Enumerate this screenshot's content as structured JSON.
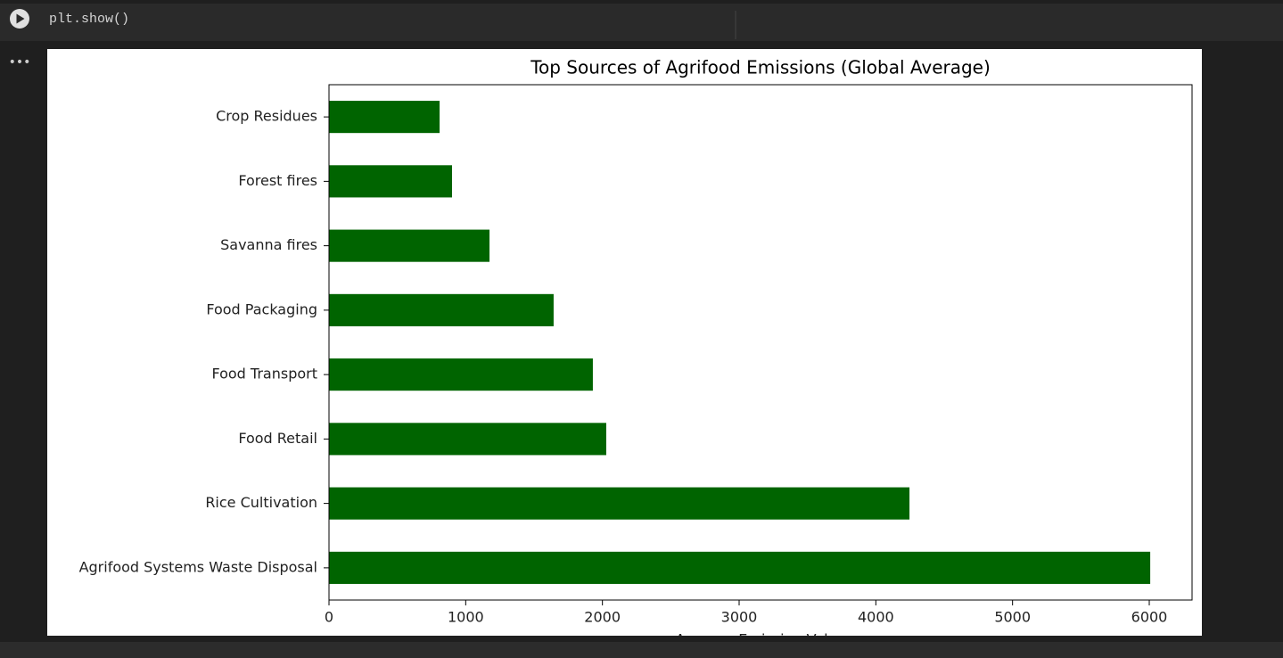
{
  "code": "plt.show()",
  "chart_data": {
    "type": "barh",
    "title": "Top Sources of Agrifood Emissions (Global Average)",
    "xlabel": "Average Emission Value",
    "categories": [
      "Agrifood Systems Waste Disposal",
      "Rice Cultivation",
      "Food Retail",
      "Food Transport",
      "Food Packaging",
      "Savanna fires",
      "Forest fires",
      "Crop Residues"
    ],
    "values": [
      6007,
      4246,
      2028,
      1930,
      1643,
      1174,
      900,
      809
    ],
    "color": "#006400",
    "xlim": [
      0,
      6313
    ],
    "xticks": [
      0,
      1000,
      2000,
      3000,
      4000,
      5000,
      6000
    ]
  }
}
